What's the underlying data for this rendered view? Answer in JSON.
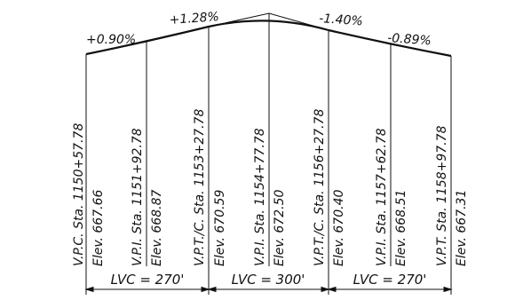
{
  "grades": [
    "+0.90%",
    "+1.28%",
    "-1.40%",
    "-0.89%"
  ],
  "stations": [
    {
      "label": "V.P.C. Sta. 1150+57.78",
      "elev": "Elev. 667.66"
    },
    {
      "label": "V.P.I. Sta. 1151+92.78",
      "elev": "Elev. 668.87"
    },
    {
      "label": "V.P.T./C. Sta. 1153+27.78",
      "elev": "Elev. 670.59"
    },
    {
      "label": "V.P.I. Sta. 1154+77.78",
      "elev": "Elev. 672.50"
    },
    {
      "label": "V.P.T./C. Sta. 1156+27.78",
      "elev": "Elev. 670.40"
    },
    {
      "label": "V.P.I. Sta. 1157+62.78",
      "elev": "Elev. 668.51"
    },
    {
      "label": "V.P.T. Sta. 1158+97.78",
      "elev": "Elev. 667.31"
    }
  ],
  "curves": [
    "LVC = 270'",
    "LVC = 300'",
    "LVC = 270'"
  ]
}
